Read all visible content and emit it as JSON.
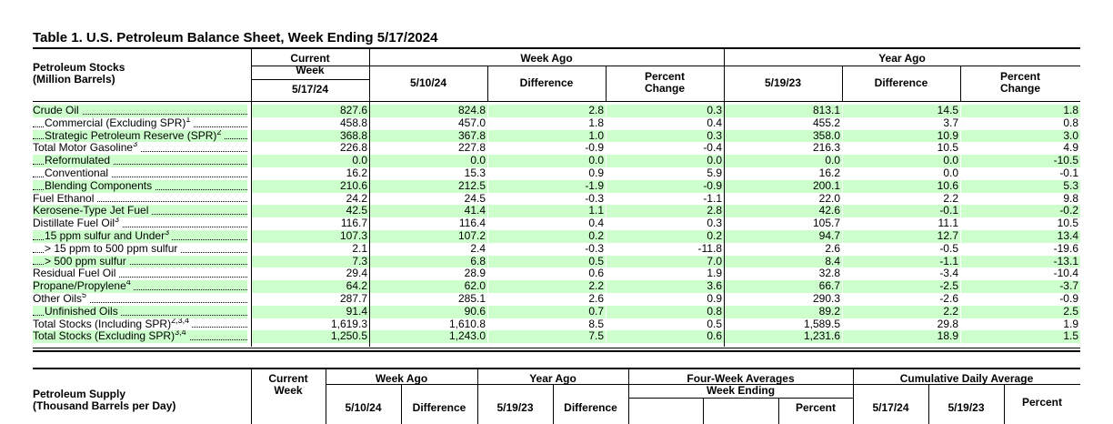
{
  "title": "Table 1.  U.S. Petroleum Balance Sheet, Week Ending 5/17/2024",
  "stocks_table": {
    "row_header": [
      "Petroleum Stocks",
      "(Million Barrels)"
    ],
    "current_week_label": [
      "Current",
      "Week"
    ],
    "current_week_date": "5/17/24",
    "week_ago_label": "Week Ago",
    "year_ago_label": "Year Ago",
    "week_ago_date": "5/10/24",
    "year_ago_date": "5/19/23",
    "difference_label": "Difference",
    "percent_change_label": [
      "Percent",
      "Change"
    ],
    "rows": [
      {
        "label": "Crude Oil",
        "sup": "",
        "indent": false,
        "shaded": true,
        "values": [
          "827.6",
          "824.8",
          "2.8",
          "0.3",
          "813.1",
          "14.5",
          "1.8"
        ]
      },
      {
        "label": "Commercial (Excluding SPR)",
        "sup": "1",
        "indent": true,
        "shaded": false,
        "values": [
          "458.8",
          "457.0",
          "1.8",
          "0.4",
          "455.2",
          "3.7",
          "0.8"
        ]
      },
      {
        "label": "Strategic Petroleum Reserve (SPR)",
        "sup": "2",
        "indent": true,
        "shaded": true,
        "values": [
          "368.8",
          "367.8",
          "1.0",
          "0.3",
          "358.0",
          "10.9",
          "3.0"
        ]
      },
      {
        "label": "Total Motor Gasoline",
        "sup": "3",
        "indent": false,
        "shaded": false,
        "values": [
          "226.8",
          "227.8",
          "-0.9",
          "-0.4",
          "216.3",
          "10.5",
          "4.9"
        ]
      },
      {
        "label": "Reformulated",
        "sup": "",
        "indent": true,
        "shaded": true,
        "values": [
          "0.0",
          "0.0",
          "0.0",
          "0.0",
          "0.0",
          "0.0",
          "-10.5"
        ]
      },
      {
        "label": "Conventional",
        "sup": "",
        "indent": true,
        "shaded": false,
        "values": [
          "16.2",
          "15.3",
          "0.9",
          "5.9",
          "16.2",
          "0.0",
          "-0.1"
        ]
      },
      {
        "label": "Blending Components",
        "sup": "",
        "indent": true,
        "shaded": true,
        "values": [
          "210.6",
          "212.5",
          "-1.9",
          "-0.9",
          "200.1",
          "10.6",
          "5.3"
        ]
      },
      {
        "label": "Fuel Ethanol",
        "sup": "",
        "indent": false,
        "shaded": false,
        "values": [
          "24.2",
          "24.5",
          "-0.3",
          "-1.1",
          "22.0",
          "2.2",
          "9.8"
        ]
      },
      {
        "label": "Kerosene-Type Jet Fuel",
        "sup": "",
        "indent": false,
        "shaded": true,
        "values": [
          "42.5",
          "41.4",
          "1.1",
          "2.8",
          "42.6",
          "-0.1",
          "-0.2"
        ]
      },
      {
        "label": "Distillate Fuel Oil",
        "sup": "3",
        "indent": false,
        "shaded": false,
        "values": [
          "116.7",
          "116.4",
          "0.4",
          "0.3",
          "105.7",
          "11.1",
          "10.5"
        ]
      },
      {
        "label": "15 ppm sulfur and Under",
        "sup": "3",
        "indent": true,
        "shaded": true,
        "values": [
          "107.3",
          "107.2",
          "0.2",
          "0.2",
          "94.7",
          "12.7",
          "13.4"
        ]
      },
      {
        "label": "> 15 ppm to 500 ppm sulfur",
        "sup": "",
        "indent": true,
        "shaded": false,
        "values": [
          "2.1",
          "2.4",
          "-0.3",
          "-11.8",
          "2.6",
          "-0.5",
          "-19.6"
        ]
      },
      {
        "label": "> 500 ppm sulfur",
        "sup": "",
        "indent": true,
        "shaded": true,
        "values": [
          "7.3",
          "6.8",
          "0.5",
          "7.0",
          "8.4",
          "-1.1",
          "-13.1"
        ]
      },
      {
        "label": "Residual Fuel Oil",
        "sup": "",
        "indent": false,
        "shaded": false,
        "values": [
          "29.4",
          "28.9",
          "0.6",
          "1.9",
          "32.8",
          "-3.4",
          "-10.4"
        ]
      },
      {
        "label": "Propane/Propylene",
        "sup": "4",
        "indent": false,
        "shaded": true,
        "values": [
          "64.2",
          "62.0",
          "2.2",
          "3.6",
          "66.7",
          "-2.5",
          "-3.7"
        ]
      },
      {
        "label": "Other Oils",
        "sup": "5",
        "indent": false,
        "shaded": false,
        "values": [
          "287.7",
          "285.1",
          "2.6",
          "0.9",
          "290.3",
          "-2.6",
          "-0.9"
        ]
      },
      {
        "label": "Unfinished Oils",
        "sup": "",
        "indent": true,
        "shaded": true,
        "values": [
          "91.4",
          "90.6",
          "0.7",
          "0.8",
          "89.2",
          "2.2",
          "2.5"
        ]
      },
      {
        "label": "Total Stocks (Including SPR)",
        "sup": "2,3,4",
        "indent": false,
        "shaded": false,
        "values": [
          "1,619.3",
          "1,610.8",
          "8.5",
          "0.5",
          "1,589.5",
          "29.8",
          "1.9"
        ]
      },
      {
        "label": "Total Stocks (Excluding SPR)",
        "sup": "3,4",
        "indent": false,
        "shaded": true,
        "values": [
          "1,250.5",
          "1,243.0",
          "7.5",
          "0.6",
          "1,231.6",
          "18.9",
          "1.5"
        ]
      }
    ]
  },
  "supply_table": {
    "row_header": [
      "Petroleum Supply",
      "(Thousand Barrels per Day)"
    ],
    "current_week_label": [
      "Current",
      "Week"
    ],
    "week_ago_label": "Week Ago",
    "year_ago_label": "Year Ago",
    "four_week_label": [
      "Four-Week Averages",
      "Week Ending"
    ],
    "cumulative_label": "Cumulative Daily Average",
    "week_ago_date": "5/10/24",
    "year_ago_date": "5/19/23",
    "difference_label": "Difference",
    "percent_label": "Percent",
    "cum_date_1": "5/17/24",
    "cum_date_2": "5/19/23"
  }
}
